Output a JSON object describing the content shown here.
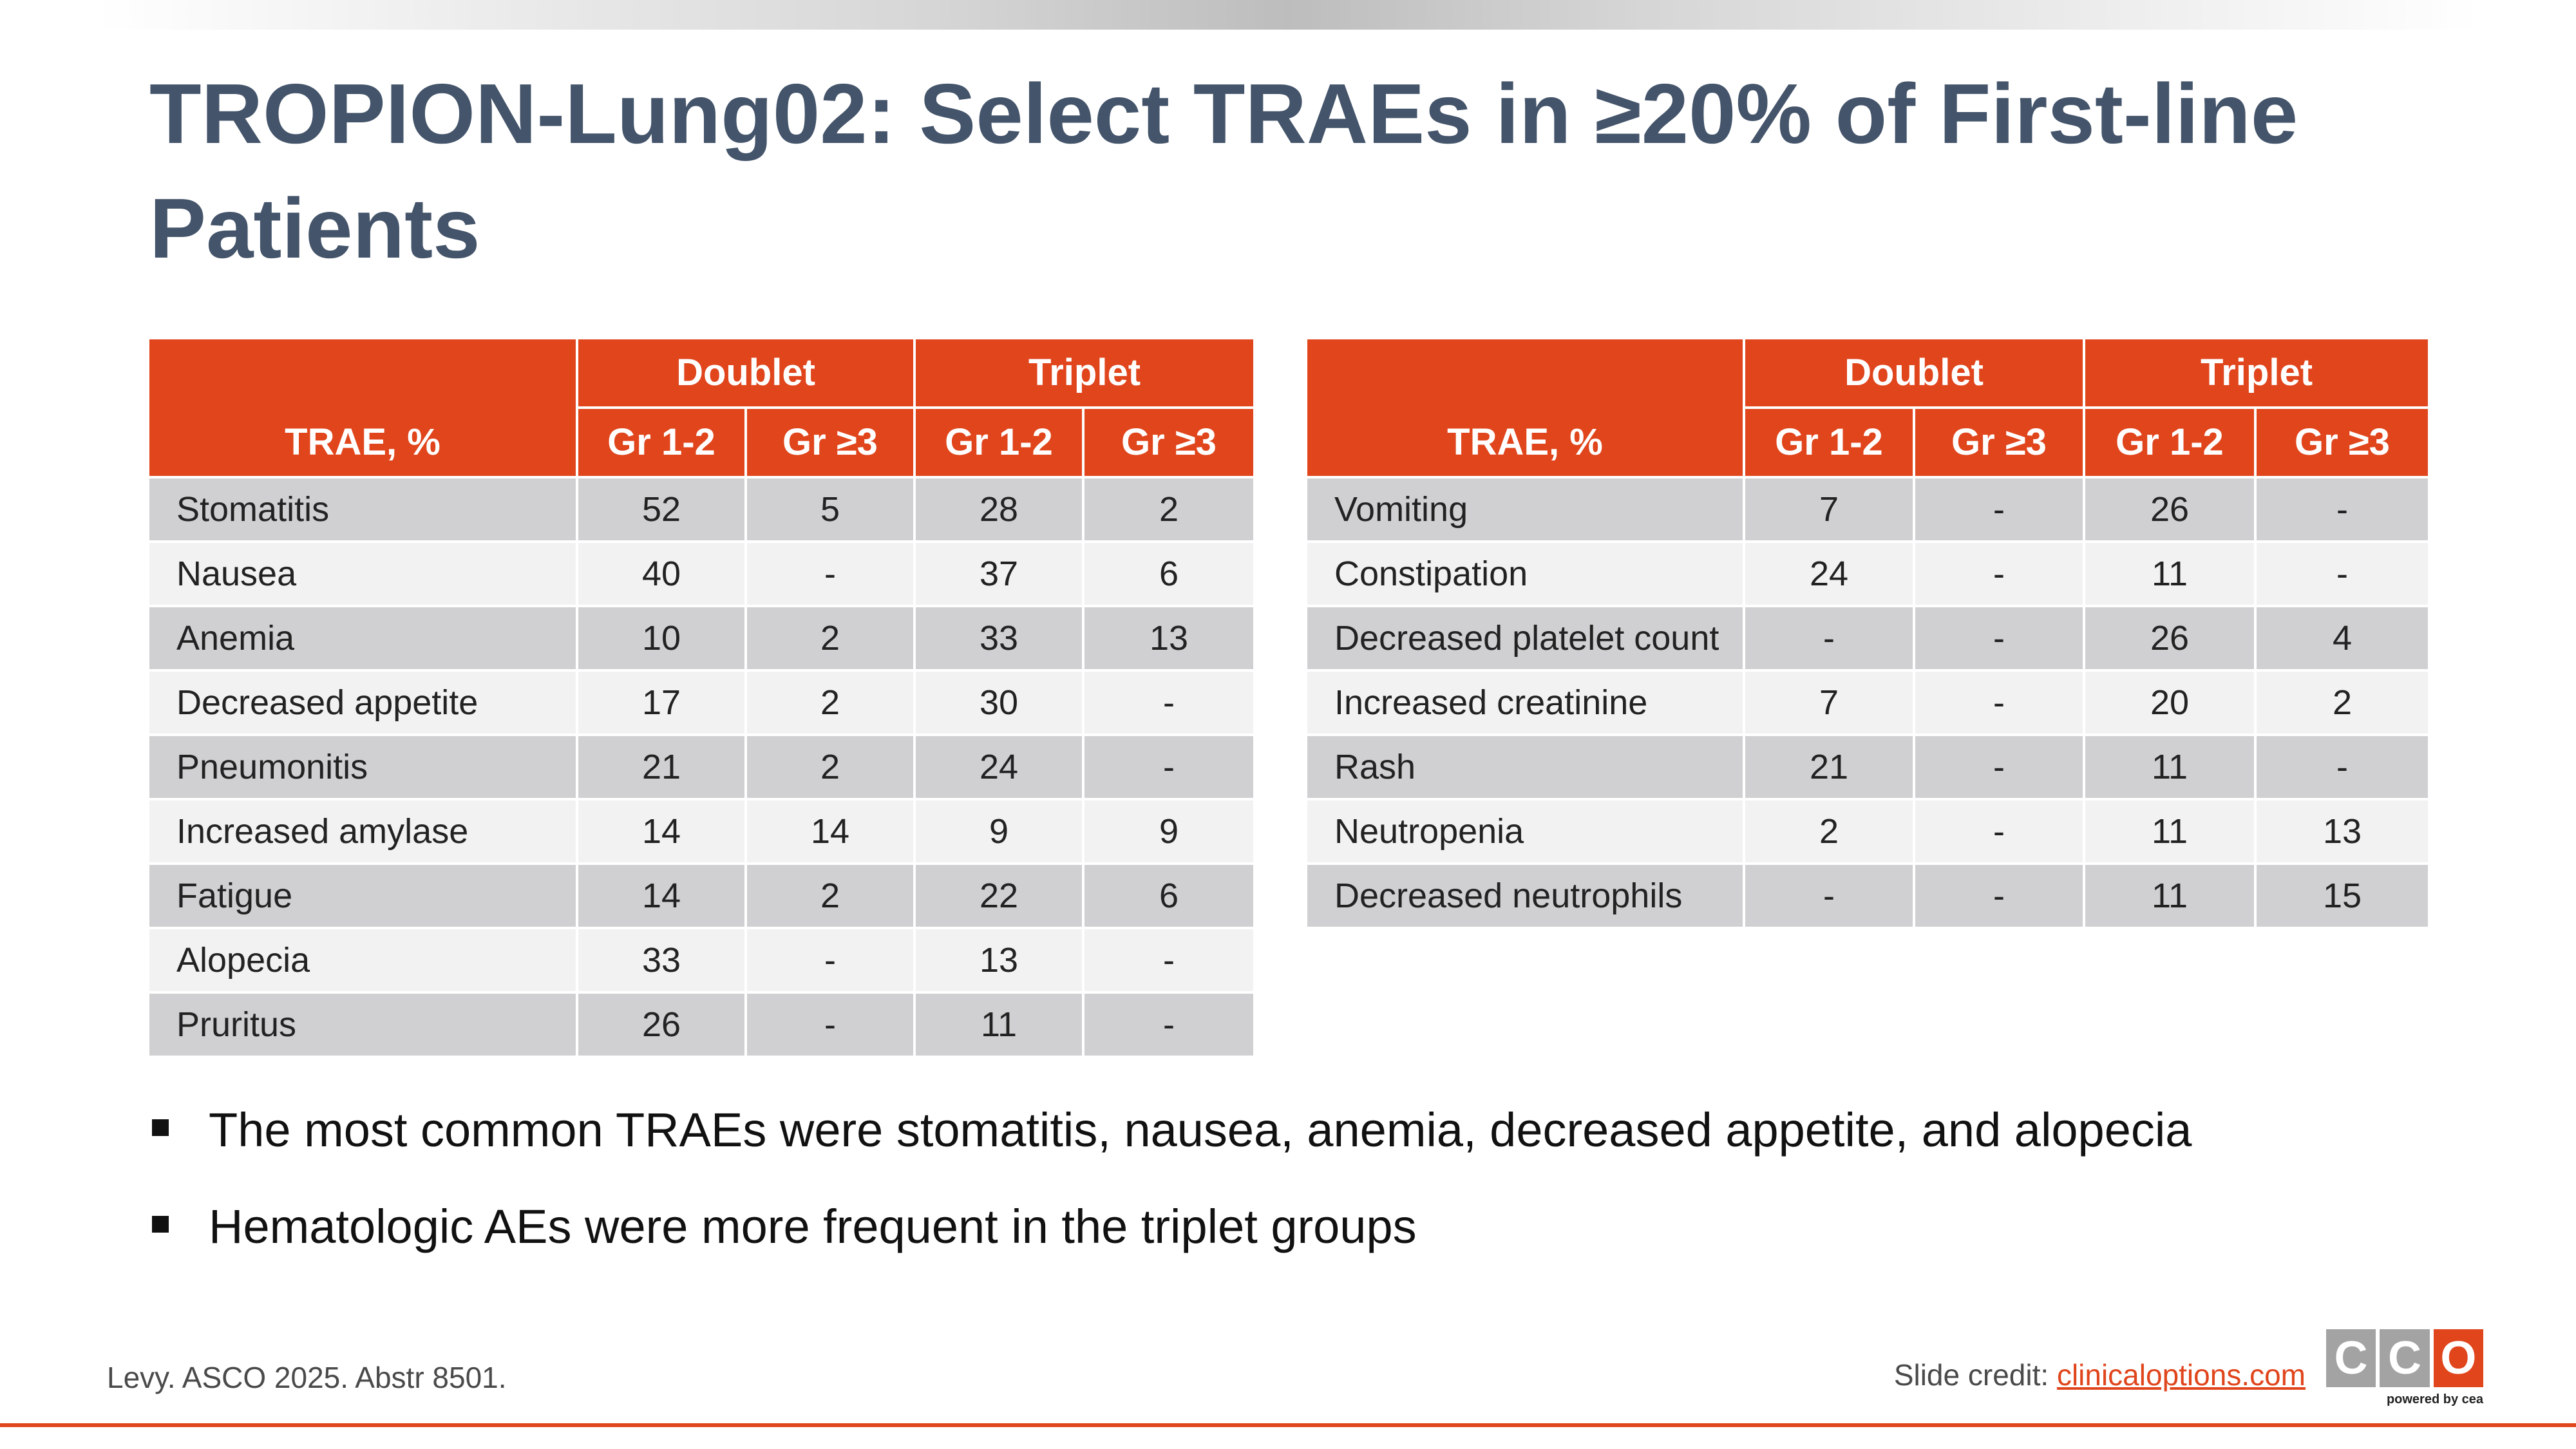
{
  "slide": {
    "title": "TROPION-Lung02: Select TRAEs in ≥20% of First-line Patients"
  },
  "tables": {
    "left": {
      "headers": {
        "rowhead": "TRAE, %",
        "group1": "Doublet",
        "group2": "Triplet",
        "sub1": "Gr 1-2",
        "sub2": "Gr ≥3",
        "sub3": "Gr 1-2",
        "sub4": "Gr ≥3"
      },
      "rows": [
        {
          "name": "Stomatitis",
          "d12": "52",
          "d3": "5",
          "t12": "28",
          "t3": "2"
        },
        {
          "name": "Nausea",
          "d12": "40",
          "d3": "-",
          "t12": "37",
          "t3": "6"
        },
        {
          "name": "Anemia",
          "d12": "10",
          "d3": "2",
          "t12": "33",
          "t3": "13"
        },
        {
          "name": "Decreased appetite",
          "d12": "17",
          "d3": "2",
          "t12": "30",
          "t3": "-"
        },
        {
          "name": "Pneumonitis",
          "d12": "21",
          "d3": "2",
          "t12": "24",
          "t3": "-"
        },
        {
          "name": "Increased amylase",
          "d12": "14",
          "d3": "14",
          "t12": "9",
          "t3": "9"
        },
        {
          "name": "Fatigue",
          "d12": "14",
          "d3": "2",
          "t12": "22",
          "t3": "6"
        },
        {
          "name": "Alopecia",
          "d12": "33",
          "d3": "-",
          "t12": "13",
          "t3": "-"
        },
        {
          "name": "Pruritus",
          "d12": "26",
          "d3": "-",
          "t12": "11",
          "t3": "-"
        }
      ]
    },
    "right": {
      "headers": {
        "rowhead": "TRAE, %",
        "group1": "Doublet",
        "group2": "Triplet",
        "sub1": "Gr 1-2",
        "sub2": "Gr ≥3",
        "sub3": "Gr 1-2",
        "sub4": "Gr ≥3"
      },
      "rows": [
        {
          "name": "Vomiting",
          "d12": "7",
          "d3": "-",
          "t12": "26",
          "t3": "-"
        },
        {
          "name": "Constipation",
          "d12": "24",
          "d3": "-",
          "t12": "11",
          "t3": "-"
        },
        {
          "name": "Decreased platelet count",
          "d12": "-",
          "d3": "-",
          "t12": "26",
          "t3": "4"
        },
        {
          "name": "Increased creatinine",
          "d12": "7",
          "d3": "-",
          "t12": "20",
          "t3": "2"
        },
        {
          "name": "Rash",
          "d12": "21",
          "d3": "-",
          "t12": "11",
          "t3": "-"
        },
        {
          "name": "Neutropenia",
          "d12": "2",
          "d3": "-",
          "t12": "11",
          "t3": "13"
        },
        {
          "name": "Decreased neutrophils",
          "d12": "-",
          "d3": "-",
          "t12": "11",
          "t3": "15"
        }
      ]
    }
  },
  "bullets": [
    "The most common TRAEs were stomatitis, nausea, anemia, decreased appetite, and alopecia",
    "Hematologic AEs were more frequent in the triplet groups"
  ],
  "footer": {
    "citation": "Levy. ASCO 2025. Abstr 8501.",
    "credit_label": "Slide credit:",
    "credit_link": "clinicaloptions.com"
  },
  "logo": {
    "letters": [
      "C",
      "C",
      "O"
    ],
    "tagline": "powered by cea"
  },
  "colors": {
    "accent": "#e0451c",
    "title": "#44546a",
    "row_dark": "#d0d0d2",
    "row_light": "#f2f2f2"
  }
}
